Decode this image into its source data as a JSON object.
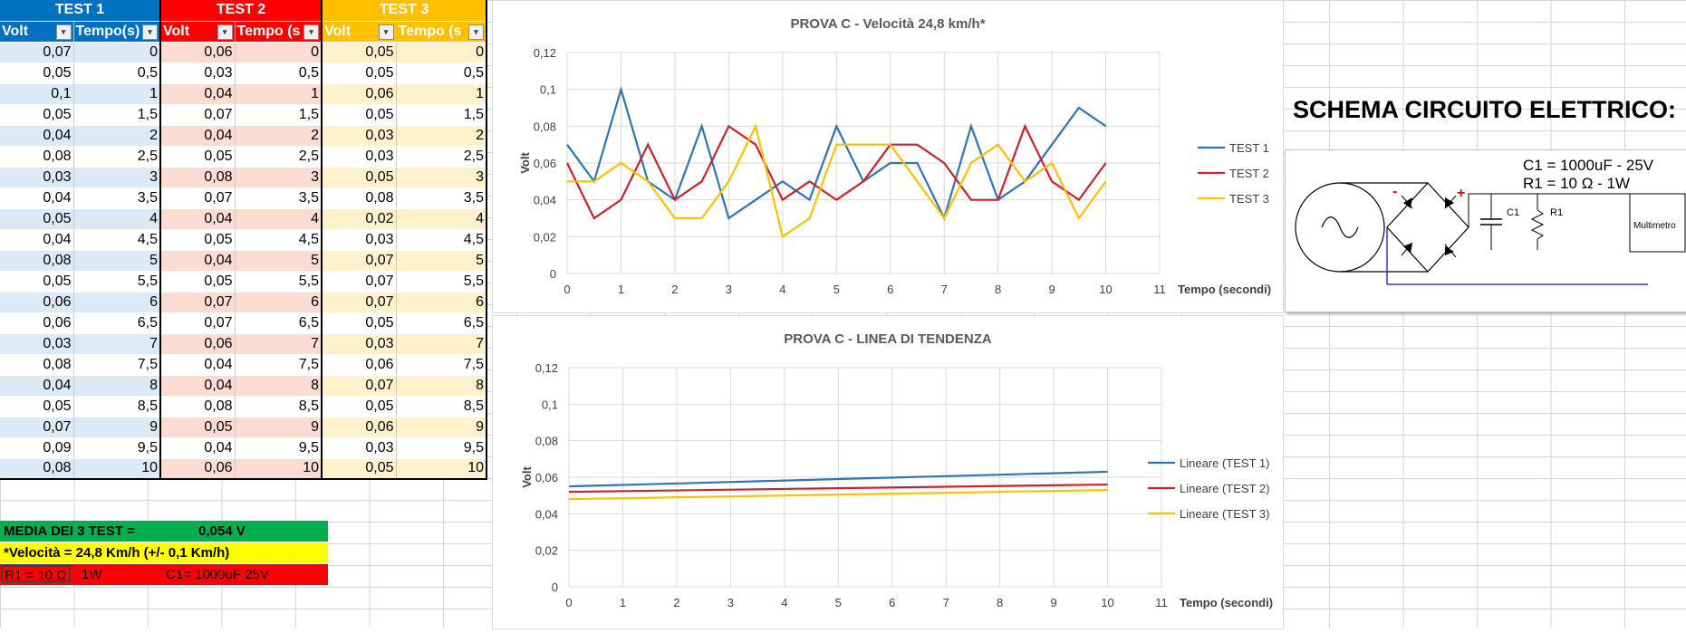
{
  "table": {
    "groups": [
      "TEST 1",
      "TEST 2",
      "TEST 3"
    ],
    "group_colors": [
      "#0070c0",
      "#ff0000",
      "#ffc000"
    ],
    "headers": [
      "Volt",
      "Tempo(s)",
      "Volt",
      "Tempo (s",
      "Volt",
      "Tempo (s"
    ],
    "rows": [
      [
        "0,07",
        "0",
        "0,06",
        "0",
        "0,05",
        "0"
      ],
      [
        "0,05",
        "0,5",
        "0,03",
        "0,5",
        "0,05",
        "0,5"
      ],
      [
        "0,1",
        "1",
        "0,04",
        "1",
        "0,06",
        "1"
      ],
      [
        "0,05",
        "1,5",
        "0,07",
        "1,5",
        "0,05",
        "1,5"
      ],
      [
        "0,04",
        "2",
        "0,04",
        "2",
        "0,03",
        "2"
      ],
      [
        "0,08",
        "2,5",
        "0,05",
        "2,5",
        "0,03",
        "2,5"
      ],
      [
        "0,03",
        "3",
        "0,08",
        "3",
        "0,05",
        "3"
      ],
      [
        "0,04",
        "3,5",
        "0,07",
        "3,5",
        "0,08",
        "3,5"
      ],
      [
        "0,05",
        "4",
        "0,04",
        "4",
        "0,02",
        "4"
      ],
      [
        "0,04",
        "4,5",
        "0,05",
        "4,5",
        "0,03",
        "4,5"
      ],
      [
        "0,08",
        "5",
        "0,04",
        "5",
        "0,07",
        "5"
      ],
      [
        "0,05",
        "5,5",
        "0,05",
        "5,5",
        "0,07",
        "5,5"
      ],
      [
        "0,06",
        "6",
        "0,07",
        "6",
        "0,07",
        "6"
      ],
      [
        "0,06",
        "6,5",
        "0,07",
        "6,5",
        "0,05",
        "6,5"
      ],
      [
        "0,03",
        "7",
        "0,06",
        "7",
        "0,03",
        "7"
      ],
      [
        "0,08",
        "7,5",
        "0,04",
        "7,5",
        "0,06",
        "7,5"
      ],
      [
        "0,04",
        "8",
        "0,04",
        "8",
        "0,07",
        "8"
      ],
      [
        "0,05",
        "8,5",
        "0,08",
        "8,5",
        "0,05",
        "8,5"
      ],
      [
        "0,07",
        "9",
        "0,05",
        "9",
        "0,06",
        "9"
      ],
      [
        "0,09",
        "9,5",
        "0,04",
        "9,5",
        "0,03",
        "9,5"
      ],
      [
        "0,08",
        "10",
        "0,06",
        "10",
        "0,05",
        "10"
      ]
    ]
  },
  "summary": {
    "media_label": "MEDIA DEI 3 TEST =",
    "media_value": "0,054  V",
    "velocita": "*Velocità = 24,8 Km/h  (+/- 0,1 Km/h)",
    "r1": "R1 = 10 Ω",
    "w": "1W",
    "c1": "C1= 1000uF 25V"
  },
  "schema": {
    "title": "SCHEMA CIRCUITO ELETTRICO:",
    "c1_text": "C1 = 1000uF - 25V",
    "r1_text": "R1 = 10 Ω - 1W",
    "c1_label": "C1",
    "r1_label": "R1",
    "meter_label": "Multimetro",
    "minus": "-",
    "plus": "+"
  },
  "chart_data": [
    {
      "type": "line",
      "title": "PROVA C  - Velocità 24,8 km/h*",
      "xlabel": "Tempo (secondi)",
      "ylabel": "Volt",
      "xlim": [
        0,
        11
      ],
      "ylim": [
        0,
        0.12
      ],
      "xticks": [
        "0",
        "1",
        "2",
        "3",
        "4",
        "5",
        "6",
        "7",
        "8",
        "9",
        "10",
        "11"
      ],
      "yticks": [
        "0",
        "0,02",
        "0,04",
        "0,06",
        "0,08",
        "0,1",
        "0,12"
      ],
      "legend": "right",
      "x": [
        0,
        0.5,
        1,
        1.5,
        2,
        2.5,
        3,
        3.5,
        4,
        4.5,
        5,
        5.5,
        6,
        6.5,
        7,
        7.5,
        8,
        8.5,
        9,
        9.5,
        10
      ],
      "series": [
        {
          "name": "TEST 1",
          "color": "#2e75b6",
          "values": [
            0.07,
            0.05,
            0.1,
            0.05,
            0.04,
            0.08,
            0.03,
            0.04,
            0.05,
            0.04,
            0.08,
            0.05,
            0.06,
            0.06,
            0.03,
            0.08,
            0.04,
            0.05,
            0.07,
            0.09,
            0.08
          ]
        },
        {
          "name": "TEST 2",
          "color": "#d0202a",
          "values": [
            0.06,
            0.03,
            0.04,
            0.07,
            0.04,
            0.05,
            0.08,
            0.07,
            0.04,
            0.05,
            0.04,
            0.05,
            0.07,
            0.07,
            0.06,
            0.04,
            0.04,
            0.08,
            0.05,
            0.04,
            0.06
          ]
        },
        {
          "name": "TEST 3",
          "color": "#ffc000",
          "values": [
            0.05,
            0.05,
            0.06,
            0.05,
            0.03,
            0.03,
            0.05,
            0.08,
            0.02,
            0.03,
            0.07,
            0.07,
            0.07,
            0.05,
            0.03,
            0.06,
            0.07,
            0.05,
            0.06,
            0.03,
            0.05
          ]
        }
      ]
    },
    {
      "type": "line",
      "title": "PROVA C  -  LINEA DI TENDENZA",
      "xlabel": "Tempo (secondi)",
      "ylabel": "Volt",
      "xlim": [
        0,
        11
      ],
      "ylim": [
        0,
        0.12
      ],
      "xticks": [
        "0",
        "1",
        "2",
        "3",
        "4",
        "5",
        "6",
        "7",
        "8",
        "9",
        "10",
        "11"
      ],
      "yticks": [
        "0",
        "0,02",
        "0,04",
        "0,06",
        "0,08",
        "0,1",
        "0,12"
      ],
      "legend": "right",
      "x": [
        0,
        10
      ],
      "series": [
        {
          "name": "Lineare (TEST 1)",
          "color": "#2e75b6",
          "values": [
            0.055,
            0.063
          ]
        },
        {
          "name": "Lineare (TEST 2)",
          "color": "#d0202a",
          "values": [
            0.052,
            0.056
          ]
        },
        {
          "name": "Lineare (TEST 3)",
          "color": "#ffc000",
          "values": [
            0.048,
            0.053
          ]
        }
      ]
    }
  ]
}
